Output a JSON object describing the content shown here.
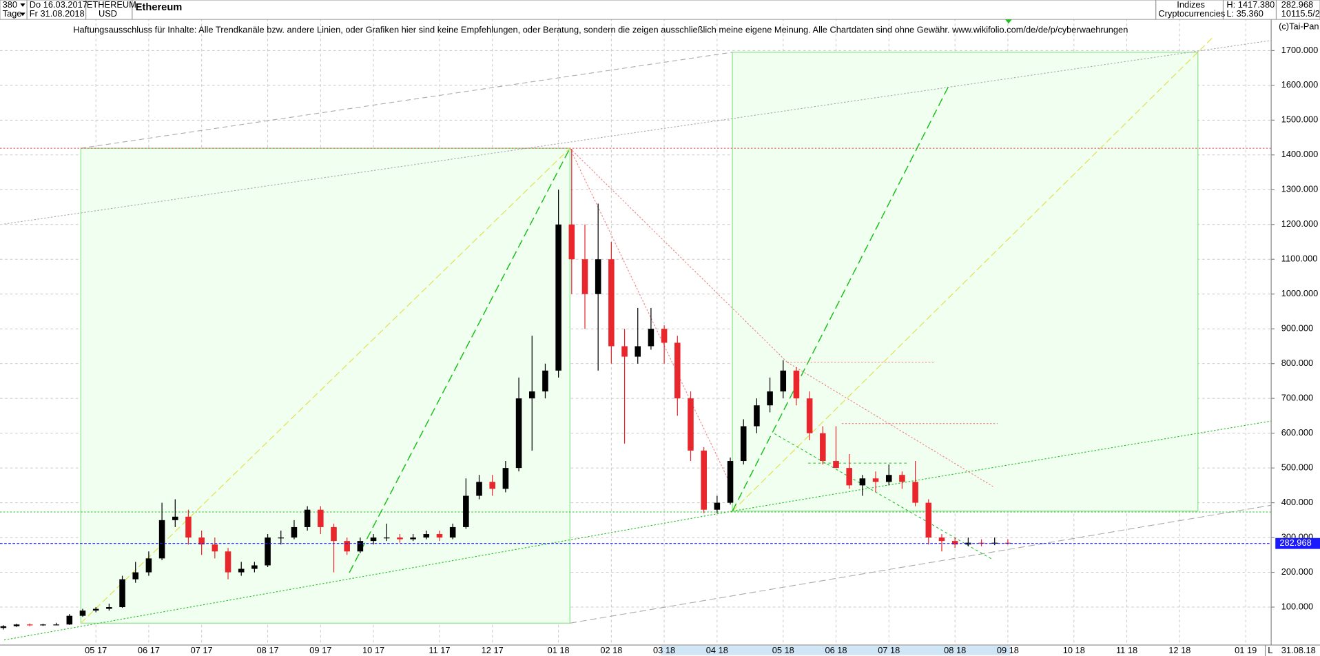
{
  "header": {
    "period": "380",
    "start_date": "Do 16.03.2017",
    "unit": "Tage",
    "end_date": "Fr 31.08.2018",
    "symbol": "ETHEREUM",
    "currency": "USD",
    "group": "Indizes",
    "category": "Cryptocurrencies",
    "high": "H: 1417.380",
    "low": "L: 35.360",
    "volume": "10115.5/2",
    "scale_mode": "L",
    "last_date": "31.08.18"
  },
  "chart_data": {
    "type": "candlestick",
    "title": "Ethereum",
    "annotation": "Haftungsausschluss für Inhalte: Alle Trendkanäle bzw. andere Linien, oder Grafiken hier sind keine Empfehlungen, oder Beratung, sondern die zeigen ausschließlich meine eigene Meinung. Alle Chartdaten sind ohne Gewähr.  www.wikifolio.com/de/de/p/cyberwaehrungen",
    "copyright": "(c)Tai-Pan",
    "categories": [
      null,
      null,
      null,
      null,
      null,
      null,
      null,
      "05 17",
      null,
      null,
      null,
      "06 17",
      null,
      null,
      null,
      "07 17",
      null,
      null,
      null,
      null,
      "08 17",
      null,
      null,
      null,
      "09 17",
      null,
      null,
      null,
      "10 17",
      null,
      null,
      null,
      null,
      "11 17",
      null,
      null,
      null,
      "12 17",
      null,
      null,
      null,
      null,
      "01 18",
      null,
      null,
      null,
      "02 18",
      null,
      null,
      null,
      "03 18",
      null,
      null,
      null,
      "04 18",
      null,
      null,
      null,
      null,
      "05 18",
      null,
      null,
      null,
      "06 18",
      null,
      null,
      null,
      "07 18",
      null,
      null,
      null,
      null,
      "08 18",
      null,
      null,
      null,
      "09 18",
      null,
      null,
      null,
      null,
      "10 18",
      null,
      null,
      null,
      "11 18",
      null,
      null,
      null,
      "12 18",
      null,
      null,
      null,
      null,
      "01 19"
    ],
    "open": [
      40,
      45,
      50,
      48,
      50,
      50,
      75,
      90,
      95,
      100,
      180,
      200,
      240,
      350,
      360,
      300,
      280,
      260,
      200,
      210,
      220,
      300,
      300,
      330,
      380,
      330,
      290,
      260,
      290,
      300,
      300,
      295,
      300,
      310,
      300,
      330,
      420,
      460,
      440,
      500,
      700,
      720,
      780,
      1200,
      1100,
      1000,
      1100,
      850,
      820,
      850,
      900,
      860,
      700,
      550,
      380,
      400,
      520,
      620,
      680,
      720,
      780,
      700,
      600,
      520,
      500,
      450,
      470,
      460,
      480,
      460,
      400,
      300,
      290,
      280,
      285,
      283,
      285,
      null,
      null,
      null,
      null,
      null,
      null,
      null,
      null,
      null,
      null,
      null,
      null,
      null,
      null,
      null,
      null,
      null,
      null
    ],
    "high": [
      48,
      52,
      53,
      52,
      55,
      80,
      95,
      100,
      110,
      190,
      230,
      260,
      400,
      410,
      380,
      320,
      300,
      270,
      230,
      230,
      310,
      320,
      350,
      390,
      390,
      340,
      300,
      300,
      310,
      340,
      310,
      310,
      320,
      320,
      340,
      470,
      480,
      480,
      520,
      760,
      880,
      800,
      1300,
      1417.38,
      1200,
      1260,
      1150,
      900,
      960,
      960,
      910,
      880,
      720,
      560,
      420,
      530,
      640,
      700,
      760,
      810,
      790,
      720,
      620,
      620,
      540,
      480,
      490,
      510,
      490,
      520,
      410,
      310,
      300,
      300,
      295,
      300,
      295,
      null,
      null,
      null,
      null,
      null,
      null,
      null,
      null,
      null,
      null,
      null,
      null,
      null,
      null,
      null,
      null,
      null,
      null
    ],
    "low": [
      35.36,
      43,
      45,
      46,
      48,
      49,
      72,
      85,
      90,
      98,
      170,
      190,
      235,
      330,
      280,
      250,
      240,
      180,
      190,
      200,
      215,
      280,
      295,
      320,
      310,
      200,
      250,
      255,
      280,
      290,
      285,
      290,
      295,
      290,
      295,
      325,
      410,
      420,
      430,
      490,
      550,
      700,
      760,
      1000,
      900,
      780,
      800,
      570,
      800,
      840,
      800,
      650,
      520,
      370,
      370,
      395,
      510,
      600,
      660,
      700,
      680,
      580,
      510,
      500,
      440,
      420,
      430,
      450,
      440,
      390,
      280,
      260,
      270,
      275,
      275,
      278,
      280,
      null,
      null,
      null,
      null,
      null,
      null,
      null,
      null,
      null,
      null,
      null,
      null,
      null,
      null,
      null,
      null,
      null,
      null
    ],
    "close": [
      45,
      50,
      48,
      50,
      50,
      75,
      90,
      95,
      100,
      180,
      200,
      240,
      350,
      360,
      300,
      280,
      260,
      200,
      210,
      220,
      300,
      300,
      330,
      380,
      330,
      290,
      260,
      290,
      300,
      300,
      295,
      300,
      310,
      300,
      330,
      420,
      460,
      440,
      500,
      700,
      720,
      780,
      1200,
      1100,
      1000,
      1100,
      850,
      820,
      850,
      900,
      860,
      700,
      550,
      380,
      400,
      520,
      620,
      680,
      720,
      780,
      700,
      600,
      520,
      500,
      450,
      470,
      460,
      480,
      460,
      400,
      300,
      290,
      280,
      285,
      283,
      285,
      282.968,
      null,
      null,
      null,
      null,
      null,
      null,
      null,
      null,
      null,
      null,
      null,
      null,
      null,
      null,
      null,
      null,
      null,
      null
    ],
    "up_color": "#000000",
    "down_color": "#e8262b",
    "last_color": "#1a1aff",
    "ylim": [
      -9,
      1792
    ],
    "yticks": [
      {
        "value": 100,
        "label": "100.000"
      },
      {
        "value": 200,
        "label": "200.000"
      },
      {
        "value": 300,
        "label": "300.000"
      },
      {
        "value": 400,
        "label": "400.000"
      },
      {
        "value": 500,
        "label": "500.000"
      },
      {
        "value": 600,
        "label": "600.000"
      },
      {
        "value": 700,
        "label": "700.000"
      },
      {
        "value": 800,
        "label": "800.000"
      },
      {
        "value": 900,
        "label": "900.000"
      },
      {
        "value": 1000,
        "label": "1000.000"
      },
      {
        "value": 1100,
        "label": "1100.000"
      },
      {
        "value": 1200,
        "label": "1200.000"
      },
      {
        "value": 1300,
        "label": "1300.000"
      },
      {
        "value": 1400,
        "label": "1400.000"
      },
      {
        "value": 1500,
        "label": "1500.000"
      },
      {
        "value": 1600,
        "label": "1600.000"
      },
      {
        "value": 1700,
        "label": "1700.000"
      }
    ],
    "grid": true
  }
}
